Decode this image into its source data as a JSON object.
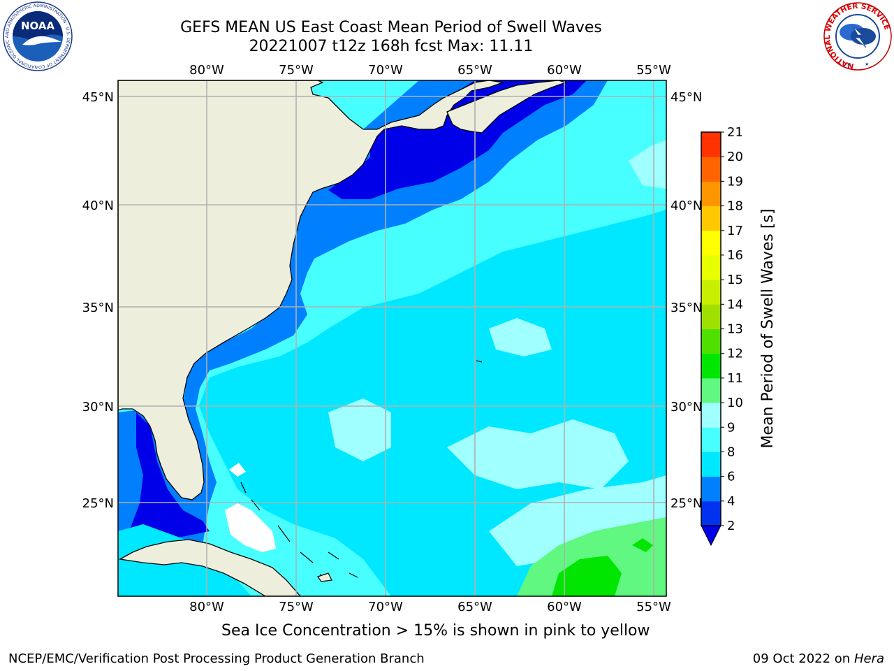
{
  "title": {
    "line1": "GEFS MEAN US East Coast Mean Period of Swell Waves",
    "line2": "20221007 t12z 168h fcst   Max: 11.11"
  },
  "map": {
    "lon_ticks": [
      "80°W",
      "75°W",
      "70°W",
      "65°W",
      "60°W",
      "55°W"
    ],
    "lat_ticks_left": [
      "45°N",
      "40°N",
      "35°N",
      "30°N",
      "25°N"
    ],
    "lat_ticks_right": [
      "45°N",
      "40°N",
      "35°N",
      "30°N",
      "25°N"
    ],
    "land_color": "#eeeedd",
    "grid_color": "#b0b0b0"
  },
  "colorbar": {
    "label": "Mean Period of Swell Waves [s]",
    "levels": [
      "2",
      "4",
      "6",
      "8",
      "9",
      "10",
      "11",
      "12",
      "13",
      "14",
      "15",
      "16",
      "17",
      "18",
      "19",
      "20",
      "21"
    ],
    "colors": [
      "#0032f0",
      "#0080ff",
      "#00e8ff",
      "#48ffff",
      "#a0ffff",
      "#60f880",
      "#00e600",
      "#50e000",
      "#a0e000",
      "#c8ef00",
      "#e8ff00",
      "#ffff00",
      "#ffc800",
      "#ff9600",
      "#ff6400",
      "#ff3200",
      "#ff0000"
    ],
    "under_color": "#0000e8"
  },
  "caption": "Sea Ice Concentration > 15% is shown in pink to yellow",
  "footer": {
    "left": "NCEP/EMC/Verification Post Processing Product Generation Branch",
    "right_prefix": "09 Oct 2022 on ",
    "right_machine": "Hera"
  },
  "logos": {
    "noaa_text": "NOAA",
    "noaa_ring": "NATIONAL OCEANIC AND ATMOSPHERIC ADMINISTRATION · U.S. DEPARTMENT OF COMMERCE",
    "nws_ring": "NATIONAL WEATHER SERVICE"
  }
}
